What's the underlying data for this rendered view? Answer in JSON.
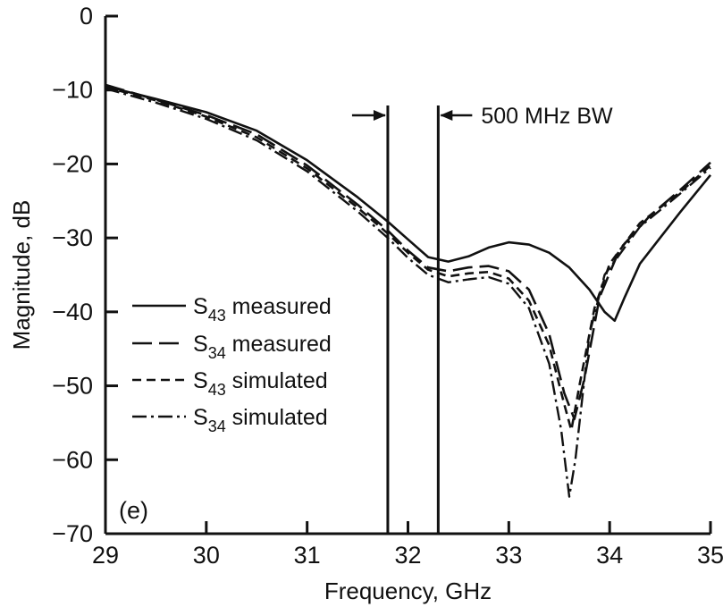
{
  "chart_data": {
    "type": "line",
    "title": "",
    "panel_label": "(e)",
    "xlabel": "Frequency, GHz",
    "ylabel": "Magnitude, dB",
    "xlim": [
      29,
      35
    ],
    "ylim": [
      -70,
      0
    ],
    "x_ticks": [
      29,
      30,
      31,
      32,
      33,
      34,
      35
    ],
    "y_ticks": [
      0,
      -10,
      -20,
      -30,
      -40,
      -50,
      -60,
      -70
    ],
    "grid": false,
    "legend_placement": "center-left",
    "annotation": {
      "text": "500 MHz BW",
      "lines_x": [
        31.8,
        32.3
      ]
    },
    "series": [
      {
        "name": "S43 measured",
        "name_base": "S",
        "name_sub": "43",
        "name_rest": " measured",
        "style": "solid",
        "points": [
          [
            29.0,
            -9.5
          ],
          [
            29.5,
            -11.2
          ],
          [
            30.0,
            -13.0
          ],
          [
            30.5,
            -15.5
          ],
          [
            31.0,
            -19.5
          ],
          [
            31.5,
            -24.5
          ],
          [
            31.8,
            -27.8
          ],
          [
            32.0,
            -30.2
          ],
          [
            32.2,
            -32.6
          ],
          [
            32.4,
            -33.2
          ],
          [
            32.6,
            -32.5
          ],
          [
            32.8,
            -31.3
          ],
          [
            33.0,
            -30.6
          ],
          [
            33.2,
            -30.9
          ],
          [
            33.4,
            -32.0
          ],
          [
            33.6,
            -34.0
          ],
          [
            33.8,
            -37.0
          ],
          [
            33.95,
            -40.0
          ],
          [
            34.05,
            -41.2
          ],
          [
            34.15,
            -38.0
          ],
          [
            34.3,
            -33.5
          ],
          [
            34.5,
            -30.0
          ],
          [
            34.7,
            -26.5
          ],
          [
            35.0,
            -21.5
          ]
        ]
      },
      {
        "name": "S34 measured",
        "name_base": "S",
        "name_sub": "34",
        "name_rest": " measured",
        "style": "long-dash",
        "points": [
          [
            29.0,
            -9.3
          ],
          [
            29.5,
            -11.3
          ],
          [
            30.0,
            -13.4
          ],
          [
            30.5,
            -16.0
          ],
          [
            31.0,
            -20.2
          ],
          [
            31.5,
            -25.5
          ],
          [
            31.8,
            -29.0
          ],
          [
            32.0,
            -31.7
          ],
          [
            32.2,
            -34.0
          ],
          [
            32.4,
            -34.5
          ],
          [
            32.6,
            -34.0
          ],
          [
            32.8,
            -33.8
          ],
          [
            33.0,
            -34.5
          ],
          [
            33.2,
            -37.0
          ],
          [
            33.4,
            -43.0
          ],
          [
            33.55,
            -51.0
          ],
          [
            33.65,
            -54.5
          ],
          [
            33.75,
            -49.0
          ],
          [
            33.9,
            -38.0
          ],
          [
            34.1,
            -31.5
          ],
          [
            34.4,
            -27.0
          ],
          [
            34.7,
            -23.5
          ],
          [
            35.0,
            -19.8
          ]
        ]
      },
      {
        "name": "S43 simulated",
        "name_base": "S",
        "name_sub": "43",
        "name_rest": " simulated",
        "style": "short-dash",
        "points": [
          [
            29.0,
            -9.6
          ],
          [
            29.5,
            -11.4
          ],
          [
            30.0,
            -13.6
          ],
          [
            30.5,
            -16.4
          ],
          [
            31.0,
            -20.6
          ],
          [
            31.5,
            -25.9
          ],
          [
            31.8,
            -29.4
          ],
          [
            32.0,
            -32.0
          ],
          [
            32.2,
            -34.3
          ],
          [
            32.4,
            -35.2
          ],
          [
            32.6,
            -34.8
          ],
          [
            32.8,
            -34.6
          ],
          [
            33.0,
            -35.5
          ],
          [
            33.2,
            -38.5
          ],
          [
            33.4,
            -44.5
          ],
          [
            33.55,
            -52.5
          ],
          [
            33.62,
            -56.0
          ],
          [
            33.7,
            -50.0
          ],
          [
            33.85,
            -39.5
          ],
          [
            34.0,
            -33.5
          ],
          [
            34.3,
            -28.0
          ],
          [
            34.7,
            -23.8
          ],
          [
            35.0,
            -20.2
          ]
        ]
      },
      {
        "name": "S34 simulated",
        "name_base": "S",
        "name_sub": "34",
        "name_rest": " simulated",
        "style": "dash-dot",
        "points": [
          [
            29.0,
            -9.8
          ],
          [
            29.5,
            -11.7
          ],
          [
            30.0,
            -13.9
          ],
          [
            30.5,
            -16.8
          ],
          [
            31.0,
            -21.0
          ],
          [
            31.5,
            -26.4
          ],
          [
            31.8,
            -30.0
          ],
          [
            32.0,
            -32.7
          ],
          [
            32.2,
            -35.0
          ],
          [
            32.4,
            -36.0
          ],
          [
            32.6,
            -35.6
          ],
          [
            32.8,
            -35.3
          ],
          [
            33.0,
            -36.2
          ],
          [
            33.2,
            -39.5
          ],
          [
            33.4,
            -47.0
          ],
          [
            33.52,
            -56.0
          ],
          [
            33.6,
            -65.0
          ],
          [
            33.66,
            -60.0
          ],
          [
            33.8,
            -43.0
          ],
          [
            33.95,
            -35.0
          ],
          [
            34.3,
            -28.5
          ],
          [
            34.7,
            -24.0
          ],
          [
            35.0,
            -20.5
          ]
        ]
      }
    ]
  }
}
